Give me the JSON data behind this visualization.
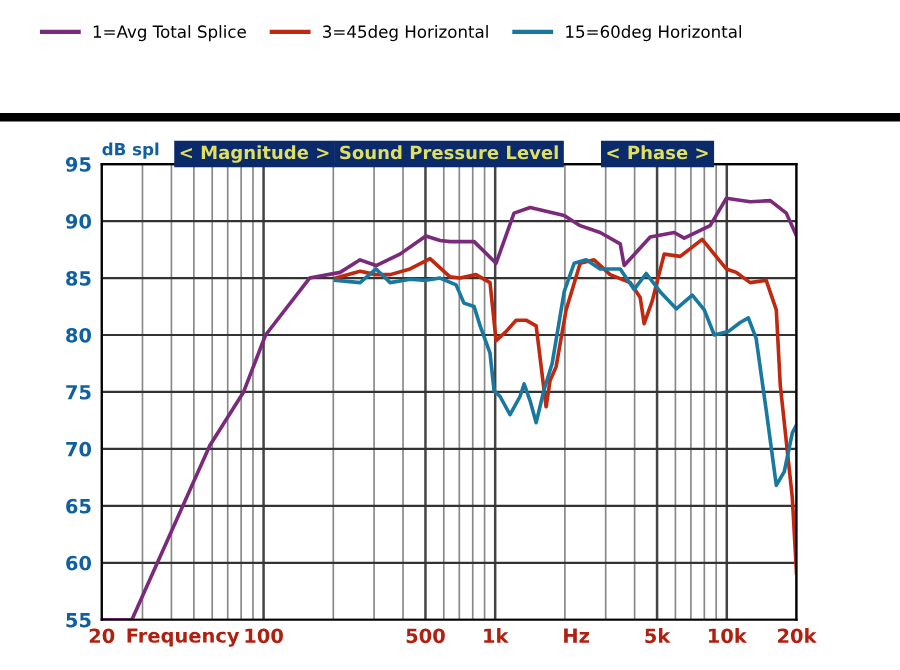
{
  "chart_data": {
    "type": "line",
    "title": "Sound Pressure Level",
    "xlabel": "Frequency",
    "ylabel": "dB spl",
    "annotations": [
      "< Magnitude >",
      "< Phase >",
      "Hz"
    ],
    "log": "x",
    "xlim": [
      20,
      20000
    ],
    "ylim": [
      55,
      95
    ],
    "xticks": [
      20,
      100,
      500,
      {
        "value": 1000,
        "label": "1k"
      },
      {
        "value": 5000,
        "label": "5k"
      },
      {
        "value": 10000,
        "label": "10k"
      },
      {
        "value": 20000,
        "label": "20k"
      }
    ],
    "yticks": [
      55,
      60,
      65,
      70,
      75,
      80,
      85,
      90,
      95
    ],
    "grid": true,
    "legend": "top",
    "marker": "none",
    "line_style": "solid",
    "series": [
      {
        "name": "1=Avg Total Splice",
        "color": "#7b2a7b",
        "x": [
          20,
          27,
          58.6,
          82,
          102,
          158,
          214,
          261,
          306,
          388,
          502,
          578,
          638,
          811,
          1009,
          1206,
          1416,
          1986,
          2328,
          2839,
          3466,
          3606,
          4670,
          5929,
          6548,
          8475,
          9950,
          12620,
          15410,
          18070,
          20000
        ],
        "values": [
          55,
          55,
          70.3,
          75,
          80,
          85,
          85.5,
          86.6,
          86.1,
          87.1,
          88.7,
          88.3,
          88.2,
          88.2,
          86.3,
          90.7,
          91.2,
          90.5,
          89.6,
          89,
          88,
          86.1,
          88.6,
          89,
          88.5,
          89.6,
          92,
          91.7,
          91.8,
          90.7,
          88.7
        ]
      },
      {
        "name": "3=45deg Horizontal",
        "color": "#c0280f",
        "x": [
          205,
          261,
          306,
          352,
          429,
          523,
          638,
          705,
          826,
          950,
          1009,
          1114,
          1231,
          1359,
          1503,
          1659,
          1726,
          1832,
          2024,
          2328,
          2673,
          3135,
          3828,
          4228,
          4397,
          4767,
          5366,
          6295,
          7831,
          9950,
          10990,
          12620,
          14800,
          16360,
          17020,
          19190,
          20000
        ],
        "values": [
          85,
          85.6,
          85.3,
          85.3,
          85.8,
          86.7,
          85.1,
          85,
          85.3,
          84.6,
          79.5,
          80.3,
          81.3,
          81.3,
          80.8,
          73.7,
          76,
          77.2,
          82.2,
          86.3,
          86.6,
          85.3,
          84.6,
          83.3,
          81,
          83,
          87.1,
          86.9,
          88.4,
          85.8,
          85.5,
          84.6,
          84.8,
          82.2,
          75.6,
          65.7,
          59.1
        ]
      },
      {
        "name": "15=60deg Horizontal",
        "color": "#1878a0",
        "x": [
          205,
          261,
          306,
          352,
          429,
          502,
          578,
          678,
          733,
          811,
          861,
          950,
          989,
          1050,
          1159,
          1280,
          1333,
          1416,
          1503,
          1626,
          1762,
          1986,
          2193,
          2472,
          2839,
          3466,
          3982,
          4489,
          5154,
          6053,
          7096,
          7995,
          8830,
          10140,
          11430,
          12390,
          13390,
          14800,
          16360,
          17710,
          19190,
          20000
        ],
        "values": [
          84.8,
          84.6,
          85.8,
          84.6,
          84.9,
          84.8,
          85,
          84.4,
          82.8,
          82.5,
          80.8,
          78.4,
          75.1,
          74.6,
          73,
          74.6,
          75.7,
          74.2,
          72.3,
          75.2,
          77.5,
          83.8,
          86.3,
          86.6,
          85.8,
          85.8,
          84,
          85.4,
          83.8,
          82.3,
          83.5,
          82.2,
          80,
          80.3,
          81.1,
          81.5,
          79.7,
          73.4,
          66.8,
          68,
          71.4,
          72.1
        ]
      }
    ]
  }
}
